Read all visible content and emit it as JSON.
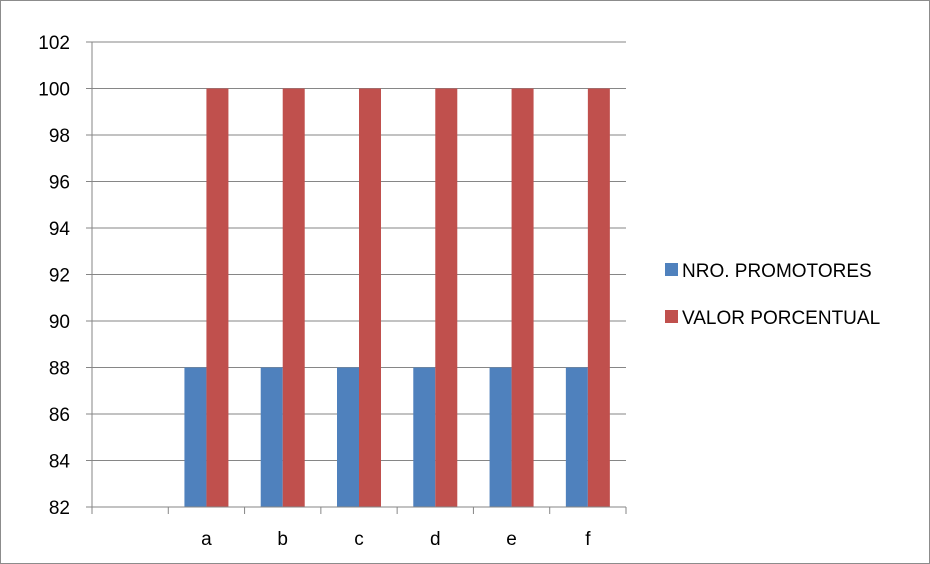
{
  "chart_data": {
    "type": "bar",
    "categories": [
      "",
      "a",
      "b",
      "c",
      "d",
      "e",
      "f"
    ],
    "series": [
      {
        "name": "NRO. PROMOTORES",
        "values": [
          null,
          88,
          88,
          88,
          88,
          88,
          88
        ],
        "color": "#4f81bd"
      },
      {
        "name": "VALOR PORCENTUAL",
        "values": [
          null,
          100,
          100,
          100,
          100,
          100,
          100
        ],
        "color": "#c0504d"
      }
    ],
    "ylim": [
      82,
      102
    ],
    "yticks": [
      82,
      84,
      86,
      88,
      90,
      92,
      94,
      96,
      98,
      100,
      102
    ],
    "grid": true,
    "legend_position": "right"
  }
}
